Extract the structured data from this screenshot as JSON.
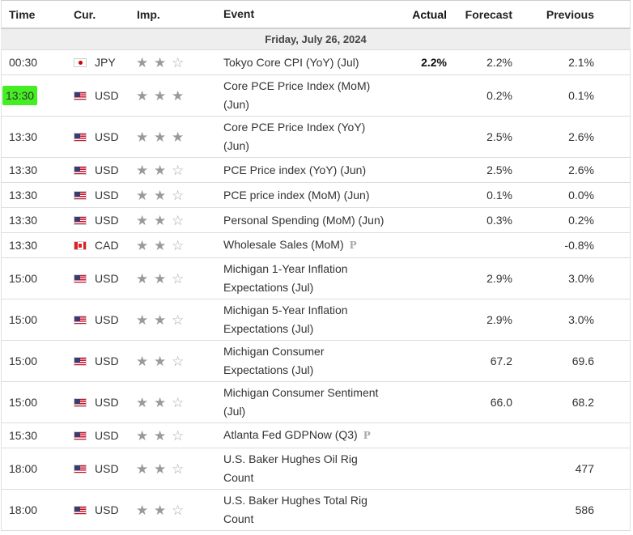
{
  "columns": {
    "time": "Time",
    "currency": "Cur.",
    "importance": "Imp.",
    "event": "Event",
    "actual": "Actual",
    "forecast": "Forecast",
    "previous": "Previous"
  },
  "date_label": "Friday, July 26, 2024",
  "highlight_color": "#44ee22",
  "star_color": "#9a9a9a",
  "events": [
    {
      "time": "00:30",
      "flag": "jp",
      "currency": "JPY",
      "stars": 2,
      "line1": "Tokyo Core CPI (YoY) (Jul)",
      "line2": "",
      "prelim": false,
      "actual": "2.2%",
      "forecast": "2.2%",
      "previous": "2.1%",
      "highlight": false
    },
    {
      "time": "13:30",
      "flag": "us",
      "currency": "USD",
      "stars": 3,
      "line1": "Core PCE Price Index (MoM)",
      "line2": "(Jun)",
      "prelim": false,
      "actual": "",
      "forecast": "0.2%",
      "previous": "0.1%",
      "highlight": true
    },
    {
      "time": "13:30",
      "flag": "us",
      "currency": "USD",
      "stars": 3,
      "line1": "Core PCE Price Index (YoY)",
      "line2": "(Jun)",
      "prelim": false,
      "actual": "",
      "forecast": "2.5%",
      "previous": "2.6%",
      "highlight": false
    },
    {
      "time": "13:30",
      "flag": "us",
      "currency": "USD",
      "stars": 2,
      "line1": "PCE Price index (YoY) (Jun)",
      "line2": "",
      "prelim": false,
      "actual": "",
      "forecast": "2.5%",
      "previous": "2.6%",
      "highlight": false
    },
    {
      "time": "13:30",
      "flag": "us",
      "currency": "USD",
      "stars": 2,
      "line1": "PCE price index (MoM) (Jun)",
      "line2": "",
      "prelim": false,
      "actual": "",
      "forecast": "0.1%",
      "previous": "0.0%",
      "highlight": false
    },
    {
      "time": "13:30",
      "flag": "us",
      "currency": "USD",
      "stars": 2,
      "line1": "Personal Spending (MoM) (Jun)",
      "line2": "",
      "prelim": false,
      "actual": "",
      "forecast": "0.3%",
      "previous": "0.2%",
      "highlight": false
    },
    {
      "time": "13:30",
      "flag": "ca",
      "currency": "CAD",
      "stars": 2,
      "line1": "Wholesale Sales (MoM)",
      "line2": "",
      "prelim": true,
      "actual": "",
      "forecast": "",
      "previous": "-0.8%",
      "highlight": false
    },
    {
      "time": "15:00",
      "flag": "us",
      "currency": "USD",
      "stars": 2,
      "line1": "Michigan 1-Year Inflation",
      "line2": "Expectations (Jul)",
      "prelim": false,
      "actual": "",
      "forecast": "2.9%",
      "previous": "3.0%",
      "highlight": false
    },
    {
      "time": "15:00",
      "flag": "us",
      "currency": "USD",
      "stars": 2,
      "line1": "Michigan 5-Year Inflation",
      "line2": "Expectations (Jul)",
      "prelim": false,
      "actual": "",
      "forecast": "2.9%",
      "previous": "3.0%",
      "highlight": false
    },
    {
      "time": "15:00",
      "flag": "us",
      "currency": "USD",
      "stars": 2,
      "line1": "Michigan Consumer",
      "line2": "Expectations (Jul)",
      "prelim": false,
      "actual": "",
      "forecast": "67.2",
      "previous": "69.6",
      "highlight": false
    },
    {
      "time": "15:00",
      "flag": "us",
      "currency": "USD",
      "stars": 2,
      "line1": "Michigan Consumer Sentiment",
      "line2": "(Jul)",
      "prelim": false,
      "actual": "",
      "forecast": "66.0",
      "previous": "68.2",
      "highlight": false
    },
    {
      "time": "15:30",
      "flag": "us",
      "currency": "USD",
      "stars": 2,
      "line1": "Atlanta Fed GDPNow (Q3)",
      "line2": "",
      "prelim": true,
      "actual": "",
      "forecast": "",
      "previous": "",
      "highlight": false
    },
    {
      "time": "18:00",
      "flag": "us",
      "currency": "USD",
      "stars": 2,
      "line1": "U.S. Baker Hughes Oil Rig",
      "line2": "Count",
      "prelim": false,
      "actual": "",
      "forecast": "",
      "previous": "477",
      "highlight": false
    },
    {
      "time": "18:00",
      "flag": "us",
      "currency": "USD",
      "stars": 2,
      "line1": "U.S. Baker Hughes Total Rig",
      "line2": "Count",
      "prelim": false,
      "actual": "",
      "forecast": "",
      "previous": "586",
      "highlight": false
    }
  ],
  "icons": {
    "star": "star-icon",
    "prelim": "preliminary-p-icon"
  }
}
